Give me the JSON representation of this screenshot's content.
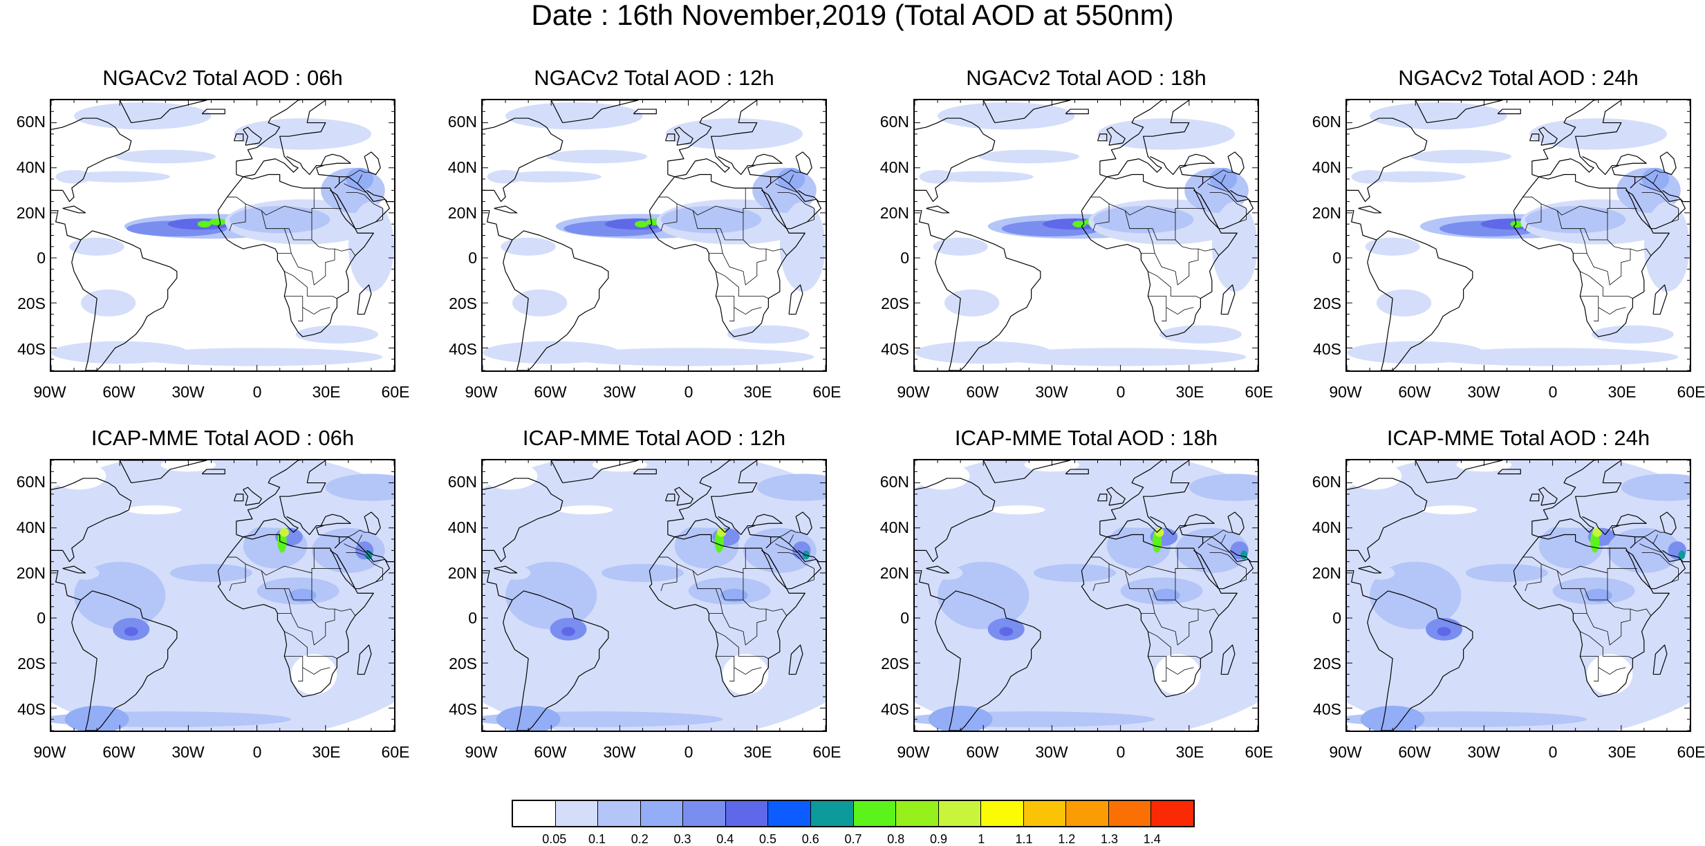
{
  "title": "Date : 16th November,2019 (Total AOD at 550nm)",
  "lat_ticks": [
    "60N",
    "40N",
    "20N",
    "0",
    "20S",
    "40S"
  ],
  "lon_ticks": [
    "90W",
    "60W",
    "30W",
    "0",
    "30E",
    "60E"
  ],
  "map_extent": {
    "lon": [
      -90,
      60
    ],
    "lat": [
      -50,
      70
    ]
  },
  "panels": [
    {
      "id": "ngac-06",
      "title": "NGACv2 Total AOD : 06h",
      "model": "ngac"
    },
    {
      "id": "ngac-12",
      "title": "NGACv2 Total AOD : 12h",
      "model": "ngac"
    },
    {
      "id": "ngac-18",
      "title": "NGACv2 Total AOD : 18h",
      "model": "ngac"
    },
    {
      "id": "ngac-24",
      "title": "NGACv2 Total AOD : 24h",
      "model": "ngac"
    },
    {
      "id": "icap-06",
      "title": "ICAP-MME Total AOD : 06h",
      "model": "icap"
    },
    {
      "id": "icap-12",
      "title": "ICAP-MME Total AOD : 12h",
      "model": "icap"
    },
    {
      "id": "icap-18",
      "title": "ICAP-MME Total AOD : 18h",
      "model": "icap"
    },
    {
      "id": "icap-24",
      "title": "ICAP-MME Total AOD : 24h",
      "model": "icap"
    }
  ],
  "colorbar": {
    "labels": [
      "0.05",
      "0.1",
      "0.2",
      "0.3",
      "0.4",
      "0.5",
      "0.6",
      "0.7",
      "0.8",
      "0.9",
      "1",
      "1.1",
      "1.2",
      "1.3",
      "1.4"
    ],
    "colors": [
      "#ffffff",
      "#d4defa",
      "#b4c5f8",
      "#93adf6",
      "#7a8ef0",
      "#5f68e8",
      "#0c5cff",
      "#0c9a9a",
      "#5cf21c",
      "#96f01c",
      "#c8f53c",
      "#fbfb05",
      "#fbc305",
      "#fb9c05",
      "#fb7005",
      "#fa2a05"
    ]
  }
}
